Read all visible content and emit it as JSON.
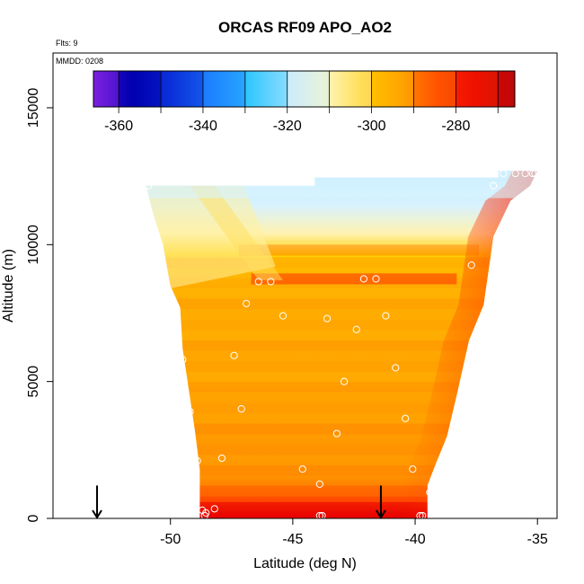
{
  "chart_data": {
    "type": "heatmap",
    "title": "ORCAS RF09 APO_AO2",
    "flts_label": "Flts: 9",
    "mmdd_label": "MMDD: 0208",
    "xlabel": "Latitude (deg N)",
    "ylabel": "Altitude (m)",
    "xlim": [
      -54.8,
      -34.2
    ],
    "ylim": [
      0,
      17000
    ],
    "xticks": [
      -50,
      -45,
      -40,
      -35
    ],
    "yticks": [
      0,
      5000,
      10000,
      15000
    ],
    "colorbar": {
      "min": -366,
      "max": -266,
      "ticks": [
        -360,
        -340,
        -320,
        -300,
        -280
      ],
      "boundaries": [
        -366,
        -360,
        -350,
        -340,
        -330,
        -320,
        -310,
        -300,
        -290,
        -280,
        -270,
        -266
      ],
      "colors": [
        "#7b1fe0",
        "#0000b0",
        "#0a2fd8",
        "#1e80ff",
        "#2ec6ff",
        "#c8ecff",
        "#fff8c0",
        "#ffc800",
        "#ff8a00",
        "#ff2400",
        "#e00000",
        "#a01010"
      ]
    },
    "field": {
      "top_edge": [
        [
          -51,
          12150
        ],
        [
          -44.1,
          12150
        ],
        [
          -44.1,
          12450
        ],
        [
          -36.6,
          12450
        ],
        [
          -36.6,
          12700
        ],
        [
          -35,
          12700
        ]
      ],
      "right_edge": [
        [
          -35,
          12700
        ],
        [
          -35.3,
          12150
        ],
        [
          -36.1,
          11600
        ],
        [
          -36.8,
          10300
        ],
        [
          -37.2,
          7800
        ],
        [
          -37.8,
          6500
        ],
        [
          -38.3,
          4500
        ],
        [
          -38.7,
          3000
        ],
        [
          -39.2,
          1900
        ],
        [
          -39.5,
          1200
        ],
        [
          -39.5,
          0
        ]
      ],
      "left_edge": [
        [
          -51,
          12150
        ],
        [
          -50.7,
          11100
        ],
        [
          -50.3,
          10000
        ],
        [
          -50,
          8500
        ],
        [
          -49.6,
          7700
        ],
        [
          -49.5,
          6200
        ],
        [
          -49.3,
          5000
        ],
        [
          -49,
          3200
        ],
        [
          -48.8,
          1800
        ],
        [
          -48.8,
          0
        ]
      ]
    },
    "observations": [
      {
        "lat": -48.6,
        "alt": 100
      },
      {
        "lat": -48.55,
        "alt": 200
      },
      {
        "lat": -48.7,
        "alt": 300
      },
      {
        "lat": -48.2,
        "alt": 350
      },
      {
        "lat": -48.9,
        "alt": 2100
      },
      {
        "lat": -47.9,
        "alt": 2200
      },
      {
        "lat": -49.2,
        "alt": 3900
      },
      {
        "lat": -47.1,
        "alt": 4000
      },
      {
        "lat": -49.5,
        "alt": 5800
      },
      {
        "lat": -47.4,
        "alt": 5950
      },
      {
        "lat": -46.9,
        "alt": 7850
      },
      {
        "lat": -45.4,
        "alt": 7400
      },
      {
        "lat": -46.4,
        "alt": 8650
      },
      {
        "lat": -45.9,
        "alt": 8650
      },
      {
        "lat": -43.6,
        "alt": 7300
      },
      {
        "lat": -42.4,
        "alt": 6900
      },
      {
        "lat": -41.2,
        "alt": 7400
      },
      {
        "lat": -41.6,
        "alt": 8750
      },
      {
        "lat": -42.1,
        "alt": 8750
      },
      {
        "lat": -37.7,
        "alt": 9250
      },
      {
        "lat": -40.8,
        "alt": 5500
      },
      {
        "lat": -42.9,
        "alt": 5000
      },
      {
        "lat": -40.4,
        "alt": 3650
      },
      {
        "lat": -43.2,
        "alt": 3100
      },
      {
        "lat": -44.6,
        "alt": 1800
      },
      {
        "lat": -43.9,
        "alt": 1250
      },
      {
        "lat": -40.1,
        "alt": 1800
      },
      {
        "lat": -39.4,
        "alt": 950
      },
      {
        "lat": -43.9,
        "alt": 100
      },
      {
        "lat": -43.8,
        "alt": 100
      },
      {
        "lat": -39.8,
        "alt": 100
      },
      {
        "lat": -39.7,
        "alt": 100
      },
      {
        "lat": -50.9,
        "alt": 12150
      },
      {
        "lat": -36.8,
        "alt": 12150
      },
      {
        "lat": -36.4,
        "alt": 12600
      },
      {
        "lat": -35.9,
        "alt": 12600
      },
      {
        "lat": -35.5,
        "alt": 12600
      },
      {
        "lat": -35.2,
        "alt": 12600
      },
      {
        "lat": -35.1,
        "alt": 12600
      }
    ],
    "arrows": [
      -53,
      -41.4
    ]
  }
}
